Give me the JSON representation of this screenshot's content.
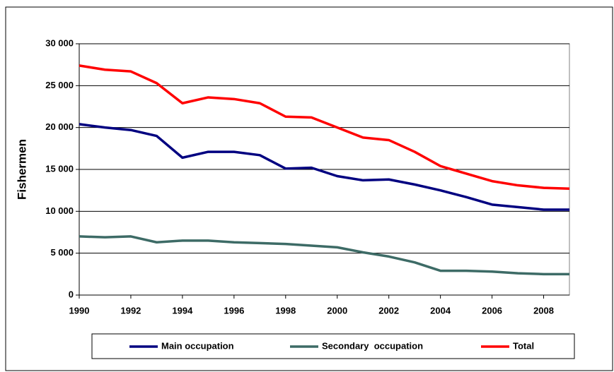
{
  "chart_data": {
    "type": "line",
    "y_label": "Fishermen",
    "x": [
      1990,
      1991,
      1992,
      1993,
      1994,
      1995,
      1996,
      1997,
      1998,
      1999,
      2000,
      2001,
      2002,
      2003,
      2004,
      2005,
      2006,
      2007,
      2008,
      2009
    ],
    "series": [
      {
        "name": "Main occupation",
        "color": "#000080",
        "values": [
          20400,
          20000,
          19700,
          19000,
          16400,
          17100,
          17100,
          16700,
          15100,
          15200,
          14200,
          13700,
          13800,
          13200,
          12500,
          11700,
          10800,
          10500,
          10200,
          10200
        ]
      },
      {
        "name": "Secondary  occupation",
        "color": "#3d6b66",
        "values": [
          7000,
          6900,
          7000,
          6300,
          6500,
          6500,
          6300,
          6200,
          6100,
          5900,
          5700,
          5100,
          4600,
          3900,
          2900,
          2900,
          2800,
          2600,
          2500,
          2500
        ]
      },
      {
        "name": "Total",
        "color": "#ff0000",
        "values": [
          27400,
          26900,
          26700,
          25300,
          22900,
          23600,
          23400,
          22900,
          21300,
          21200,
          20000,
          18800,
          18500,
          17100,
          15400,
          14500,
          13600,
          13100,
          12800,
          12700
        ]
      }
    ],
    "xlim": [
      1990,
      2009
    ],
    "xticks": [
      1990,
      1992,
      1994,
      1996,
      1998,
      2000,
      2002,
      2004,
      2006,
      2008
    ],
    "ylim": [
      0,
      30000
    ],
    "yticks": [
      0,
      {
        "value": 5000,
        "label": "5 000"
      },
      {
        "value": 10000,
        "label": "10 000"
      },
      {
        "value": 15000,
        "label": "15 000"
      },
      {
        "value": 20000,
        "label": "20 000"
      },
      {
        "value": 25000,
        "label": "25 000"
      },
      {
        "value": 30000,
        "label": "30 000"
      }
    ],
    "grid": true,
    "legend": "bottom"
  }
}
